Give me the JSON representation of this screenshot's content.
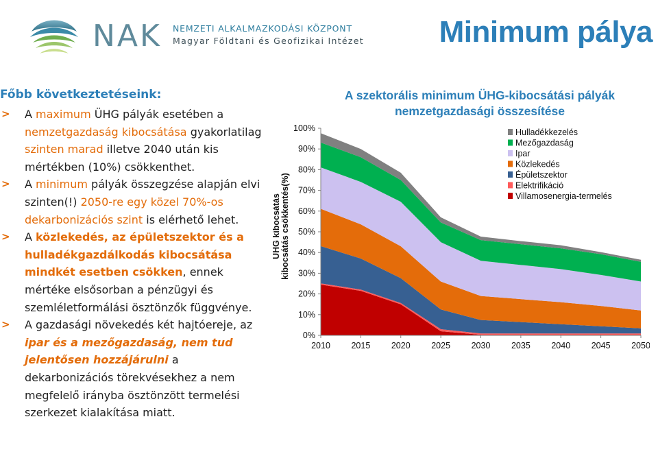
{
  "header": {
    "logo_abbr": "NAK",
    "logo_line1": "NEMZETI ALKALMAZKODÁSI KÖZPONT",
    "logo_line2": "Magyar Földtani és Geofizikai Intézet",
    "title": "Minimum pálya"
  },
  "conclusions": {
    "heading": "Főbb következtetéseink:",
    "marker": ">",
    "b1": {
      "t1": "A ",
      "maximum": "maximum",
      "t2": " ÜHG pályák esetében a ",
      "h1": "nemzetgazdaság kibocsátása",
      "t3": " gyakorlatilag ",
      "h2": "szinten marad",
      "t4": " illetve 2040 után kis mértékben (10%) csökkenthet."
    },
    "b2": {
      "t1": "A ",
      "minimum": "minimum",
      "t2": " pályák összegzése alapján elvi szinten(!) ",
      "h1": "2050-re egy közel 70%-os dekarbonizációs szint",
      "t3": " is elérhető lehet."
    },
    "b3": {
      "t1": "A ",
      "h1": "közlekedés, az épületszektor és a hulladékgazdálkodás kibocsátása mindkét esetben csökken",
      "t2": ", ennek mértéke elsősorban a pénzügyi és szemléletformálási ösztönzők függvénye."
    },
    "b4": {
      "t1": "A gazdasági növekedés két hajtóereje, az ",
      "h1": "ipar és a mezőgazdaság, nem tud jelentősen hozzájárulni",
      "t2": " a dekarbonizációs törekvésekhez a nem megfelelő irányba ösztönzött termelési szerkezet kialakítása miatt."
    }
  },
  "chart_title_line1": "A szektorális minimum ÜHG-kibocsátási pályák",
  "chart_title_line2": "nemzetgazdasági összesítése",
  "chart_data": {
    "type": "area",
    "stacked": true,
    "x": [
      2010,
      2015,
      2020,
      2025,
      2030,
      2035,
      2040,
      2045,
      2050
    ],
    "yticks": [
      "0%",
      "10%",
      "20%",
      "30%",
      "40%",
      "50%",
      "60%",
      "70%",
      "80%",
      "90%",
      "100%"
    ],
    "ylim": [
      0,
      100
    ],
    "ylabel_line1": "ÜHG kibocsátás",
    "ylabel_line2": "kibocsátás csökkentés(%)",
    "grid": false,
    "legend_position": "top-right",
    "series": [
      {
        "name": "Villamosenergia-termelés",
        "color": "#c00000",
        "values": [
          24.5,
          21.5,
          15.0,
          2.0,
          0.3,
          0.3,
          0.3,
          0.3,
          0.3
        ]
      },
      {
        "name": "Elektrifikáció",
        "color": "#ff5b5b",
        "values": [
          0.6,
          0.6,
          0.6,
          1.0,
          0.6,
          0.6,
          0.6,
          0.6,
          0.6
        ]
      },
      {
        "name": "Épületszektor",
        "color": "#376092",
        "values": [
          18.0,
          15.0,
          12.0,
          9.5,
          6.5,
          5.5,
          4.5,
          3.5,
          2.5
        ]
      },
      {
        "name": "Közlekedés",
        "color": "#e46c0a",
        "values": [
          18.0,
          16.5,
          15.4,
          13.5,
          11.6,
          11.1,
          10.6,
          9.8,
          8.6
        ]
      },
      {
        "name": "Ipar",
        "color": "#ccc1f0",
        "values": [
          20.0,
          20.5,
          21.5,
          19.0,
          17.0,
          16.5,
          16.0,
          15.0,
          14.0
        ]
      },
      {
        "name": "Mezőgazdaság",
        "color": "#00b050",
        "values": [
          12.0,
          11.9,
          10.5,
          9.5,
          10.0,
          10.0,
          10.0,
          10.0,
          9.5
        ]
      },
      {
        "name": "Hulladékkezelés",
        "color": "#808080",
        "values": [
          4.5,
          4.0,
          3.5,
          2.5,
          1.7,
          1.5,
          1.5,
          1.0,
          1.0
        ]
      }
    ]
  }
}
